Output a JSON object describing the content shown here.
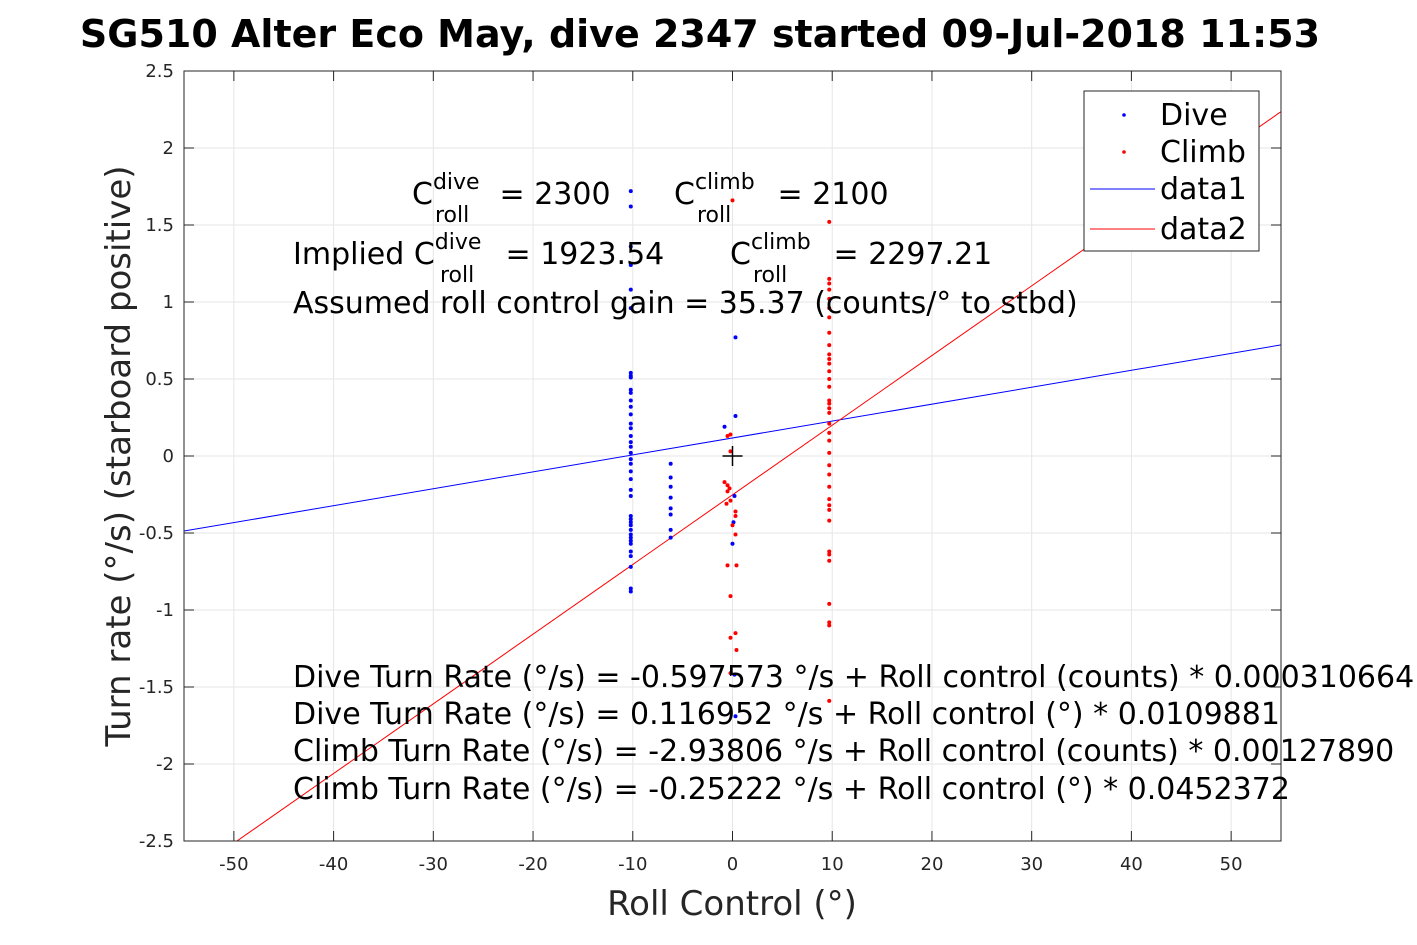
{
  "figure": {
    "title": "SG510 Alter Eco May, dive 2347 started 09-Jul-2018 11:53"
  },
  "chart_data": {
    "type": "scatter",
    "xlabel": "Roll Control (°)",
    "ylabel": "Turn rate (°/s) (starboard positive)",
    "xlim": [
      -55,
      55
    ],
    "ylim": [
      -2.5,
      2.5
    ],
    "xticks": [
      -50,
      -40,
      -30,
      -20,
      -10,
      0,
      10,
      20,
      30,
      40,
      50
    ],
    "yticks": [
      -2.5,
      -2,
      -1.5,
      -1,
      -0.5,
      0,
      0.5,
      1,
      1.5,
      2,
      2.5
    ],
    "grid": true,
    "legend_position": "top-right",
    "center_marker": [
      0,
      0
    ],
    "series": [
      {
        "name": "Dive",
        "kind": "points",
        "color": "#0000ff",
        "points": [
          [
            -10.2,
            1.72
          ],
          [
            -10.2,
            1.62
          ],
          [
            -10.2,
            1.36
          ],
          [
            -10.2,
            1.24
          ],
          [
            -10.2,
            1.08
          ],
          [
            -10.2,
            0.96
          ],
          [
            -10.2,
            0.54
          ],
          [
            -10.2,
            0.52
          ],
          [
            -10.2,
            0.51
          ],
          [
            -10.2,
            0.43
          ],
          [
            -10.2,
            0.41
          ],
          [
            -10.2,
            0.36
          ],
          [
            -10.2,
            0.32
          ],
          [
            -10.2,
            0.27
          ],
          [
            -10.2,
            0.21
          ],
          [
            -10.2,
            0.18
          ],
          [
            -10.2,
            0.13
          ],
          [
            -10.2,
            0.09
          ],
          [
            -10.2,
            0.06
          ],
          [
            -10.2,
            0.02
          ],
          [
            -10.2,
            -0.02
          ],
          [
            -10.2,
            -0.05
          ],
          [
            -10.2,
            -0.1
          ],
          [
            -10.2,
            -0.15
          ],
          [
            -10.2,
            -0.22
          ],
          [
            -10.2,
            -0.26
          ],
          [
            -10.2,
            -0.39
          ],
          [
            -10.2,
            -0.41
          ],
          [
            -10.2,
            -0.43
          ],
          [
            -10.2,
            -0.45
          ],
          [
            -10.2,
            -0.48
          ],
          [
            -10.2,
            -0.51
          ],
          [
            -10.2,
            -0.53
          ],
          [
            -10.2,
            -0.55
          ],
          [
            -10.2,
            -0.57
          ],
          [
            -10.2,
            -0.62
          ],
          [
            -10.2,
            -0.65
          ],
          [
            -10.2,
            -0.72
          ],
          [
            -10.2,
            -0.86
          ],
          [
            -10.2,
            -0.88
          ],
          [
            -6.2,
            -0.05
          ],
          [
            -6.2,
            -0.14
          ],
          [
            -6.2,
            -0.2
          ],
          [
            -6.2,
            -0.27
          ],
          [
            -6.2,
            -0.34
          ],
          [
            -6.2,
            -0.38
          ],
          [
            -6.2,
            -0.48
          ],
          [
            -6.2,
            -0.53
          ],
          [
            -0.8,
            0.19
          ],
          [
            0.3,
            0.77
          ],
          [
            0.3,
            0.26
          ],
          [
            0.2,
            -0.26
          ],
          [
            0.1,
            -0.43
          ],
          [
            0,
            -0.57
          ],
          [
            0.2,
            -1.42
          ],
          [
            0.3,
            -1.69
          ]
        ]
      },
      {
        "name": "Climb",
        "kind": "points",
        "color": "#ff0000",
        "points": [
          [
            9.7,
            1.52
          ],
          [
            9.7,
            1.15
          ],
          [
            9.7,
            1.12
          ],
          [
            9.7,
            1.08
          ],
          [
            9.7,
            1.02
          ],
          [
            9.7,
            0.96
          ],
          [
            9.7,
            0.9
          ],
          [
            9.7,
            0.8
          ],
          [
            9.7,
            0.72
          ],
          [
            9.7,
            0.66
          ],
          [
            9.7,
            0.63
          ],
          [
            9.7,
            0.6
          ],
          [
            9.7,
            0.55
          ],
          [
            9.7,
            0.5
          ],
          [
            9.7,
            0.45
          ],
          [
            9.7,
            0.36
          ],
          [
            9.7,
            0.34
          ],
          [
            9.7,
            0.31
          ],
          [
            9.7,
            0.28
          ],
          [
            9.7,
            0.21
          ],
          [
            9.7,
            0.15
          ],
          [
            9.7,
            0.1
          ],
          [
            9.7,
            0.02
          ],
          [
            9.7,
            -0.06
          ],
          [
            9.7,
            -0.12
          ],
          [
            9.7,
            -0.2
          ],
          [
            9.7,
            -0.28
          ],
          [
            9.7,
            -0.32
          ],
          [
            9.7,
            -0.35
          ],
          [
            9.7,
            -0.42
          ],
          [
            9.7,
            -0.62
          ],
          [
            9.7,
            -0.64
          ],
          [
            9.7,
            -0.68
          ],
          [
            9.7,
            -0.96
          ],
          [
            9.7,
            -1.08
          ],
          [
            9.7,
            -1.1
          ],
          [
            9.7,
            -1.59
          ],
          [
            0,
            1.66
          ],
          [
            -0.2,
            0.14
          ],
          [
            -0.5,
            0.13
          ],
          [
            -0.2,
            0.03
          ],
          [
            -0.8,
            -0.17
          ],
          [
            -0.5,
            -0.19
          ],
          [
            -0.3,
            -0.21
          ],
          [
            -0.5,
            -0.23
          ],
          [
            -0.2,
            -0.29
          ],
          [
            -0.6,
            -0.31
          ],
          [
            0.3,
            -0.36
          ],
          [
            0.3,
            -0.39
          ],
          [
            0,
            -0.45
          ],
          [
            0.3,
            -0.51
          ],
          [
            -0.5,
            -0.71
          ],
          [
            0.4,
            -0.71
          ],
          [
            -0.2,
            -0.91
          ],
          [
            -0.2,
            -1.18
          ],
          [
            0.3,
            -1.15
          ],
          [
            0.4,
            -1.26
          ],
          [
            -0.2,
            -1.41
          ]
        ]
      },
      {
        "name": "data1",
        "kind": "line",
        "color": "#0000ff",
        "x": [
          -55,
          55
        ],
        "y": [
          -0.4874,
          0.7213
        ]
      },
      {
        "name": "data2",
        "kind": "line",
        "color": "#ff0000",
        "x": [
          -55,
          55
        ],
        "y": [
          -2.7402,
          2.2358
        ]
      }
    ],
    "annotations": {
      "c_dive_base": "C",
      "c_dive_sup": "dive",
      "c_dive_sub": "roll",
      "c_dive_value": " = 2300",
      "c_climb_base": "C",
      "c_climb_sup": "climb",
      "c_climb_sub": "roll",
      "c_climb_value": " = 2100",
      "implied_prefix": "Implied C",
      "implied_dive_sup": "dive",
      "implied_dive_sub": "roll",
      "implied_dive_value": " = 1923.54",
      "implied_climb_base": "C",
      "implied_climb_sup": "climb",
      "implied_climb_sub": "roll",
      "implied_climb_value": " = 2297.21",
      "gain": "Assumed roll control gain = 35.37 (counts/° to stbd)",
      "eq1": "Dive Turn Rate (°/s) = -0.597573 °/s + Roll control (counts) * 0.000310664",
      "eq2": "Dive Turn Rate (°/s) = 0.116952 °/s + Roll control (°) * 0.0109881",
      "eq3": "Climb Turn Rate (°/s) = -2.93806 °/s + Roll control (counts) * 0.00127890",
      "eq4": "Climb Turn Rate (°/s) = -0.25222 °/s + Roll control (°) * 0.0452372"
    }
  }
}
